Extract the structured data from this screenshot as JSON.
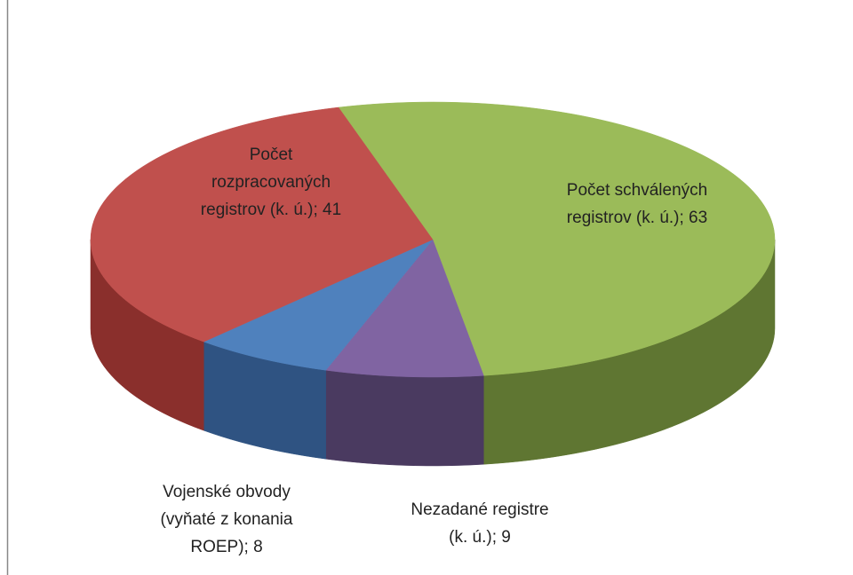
{
  "chart_data": {
    "type": "pie",
    "values": [
      63,
      9,
      8,
      41
    ],
    "value_labels": [
      "Počet schválených registrov  (k. ú.); 63",
      "Nezadané registre (k. ú.); 9",
      "Vojenské obvody (vyňaté z konania ROEP); 8",
      "Počet rozpracovaných registrov (k. ú.); 41"
    ],
    "colors": [
      "#9bbb59",
      "#8064a2",
      "#4f81bd",
      "#c0504d"
    ],
    "side_colors": [
      "#5f7632",
      "#4a3a60",
      "#2f5382",
      "#8a2f2c"
    ]
  }
}
